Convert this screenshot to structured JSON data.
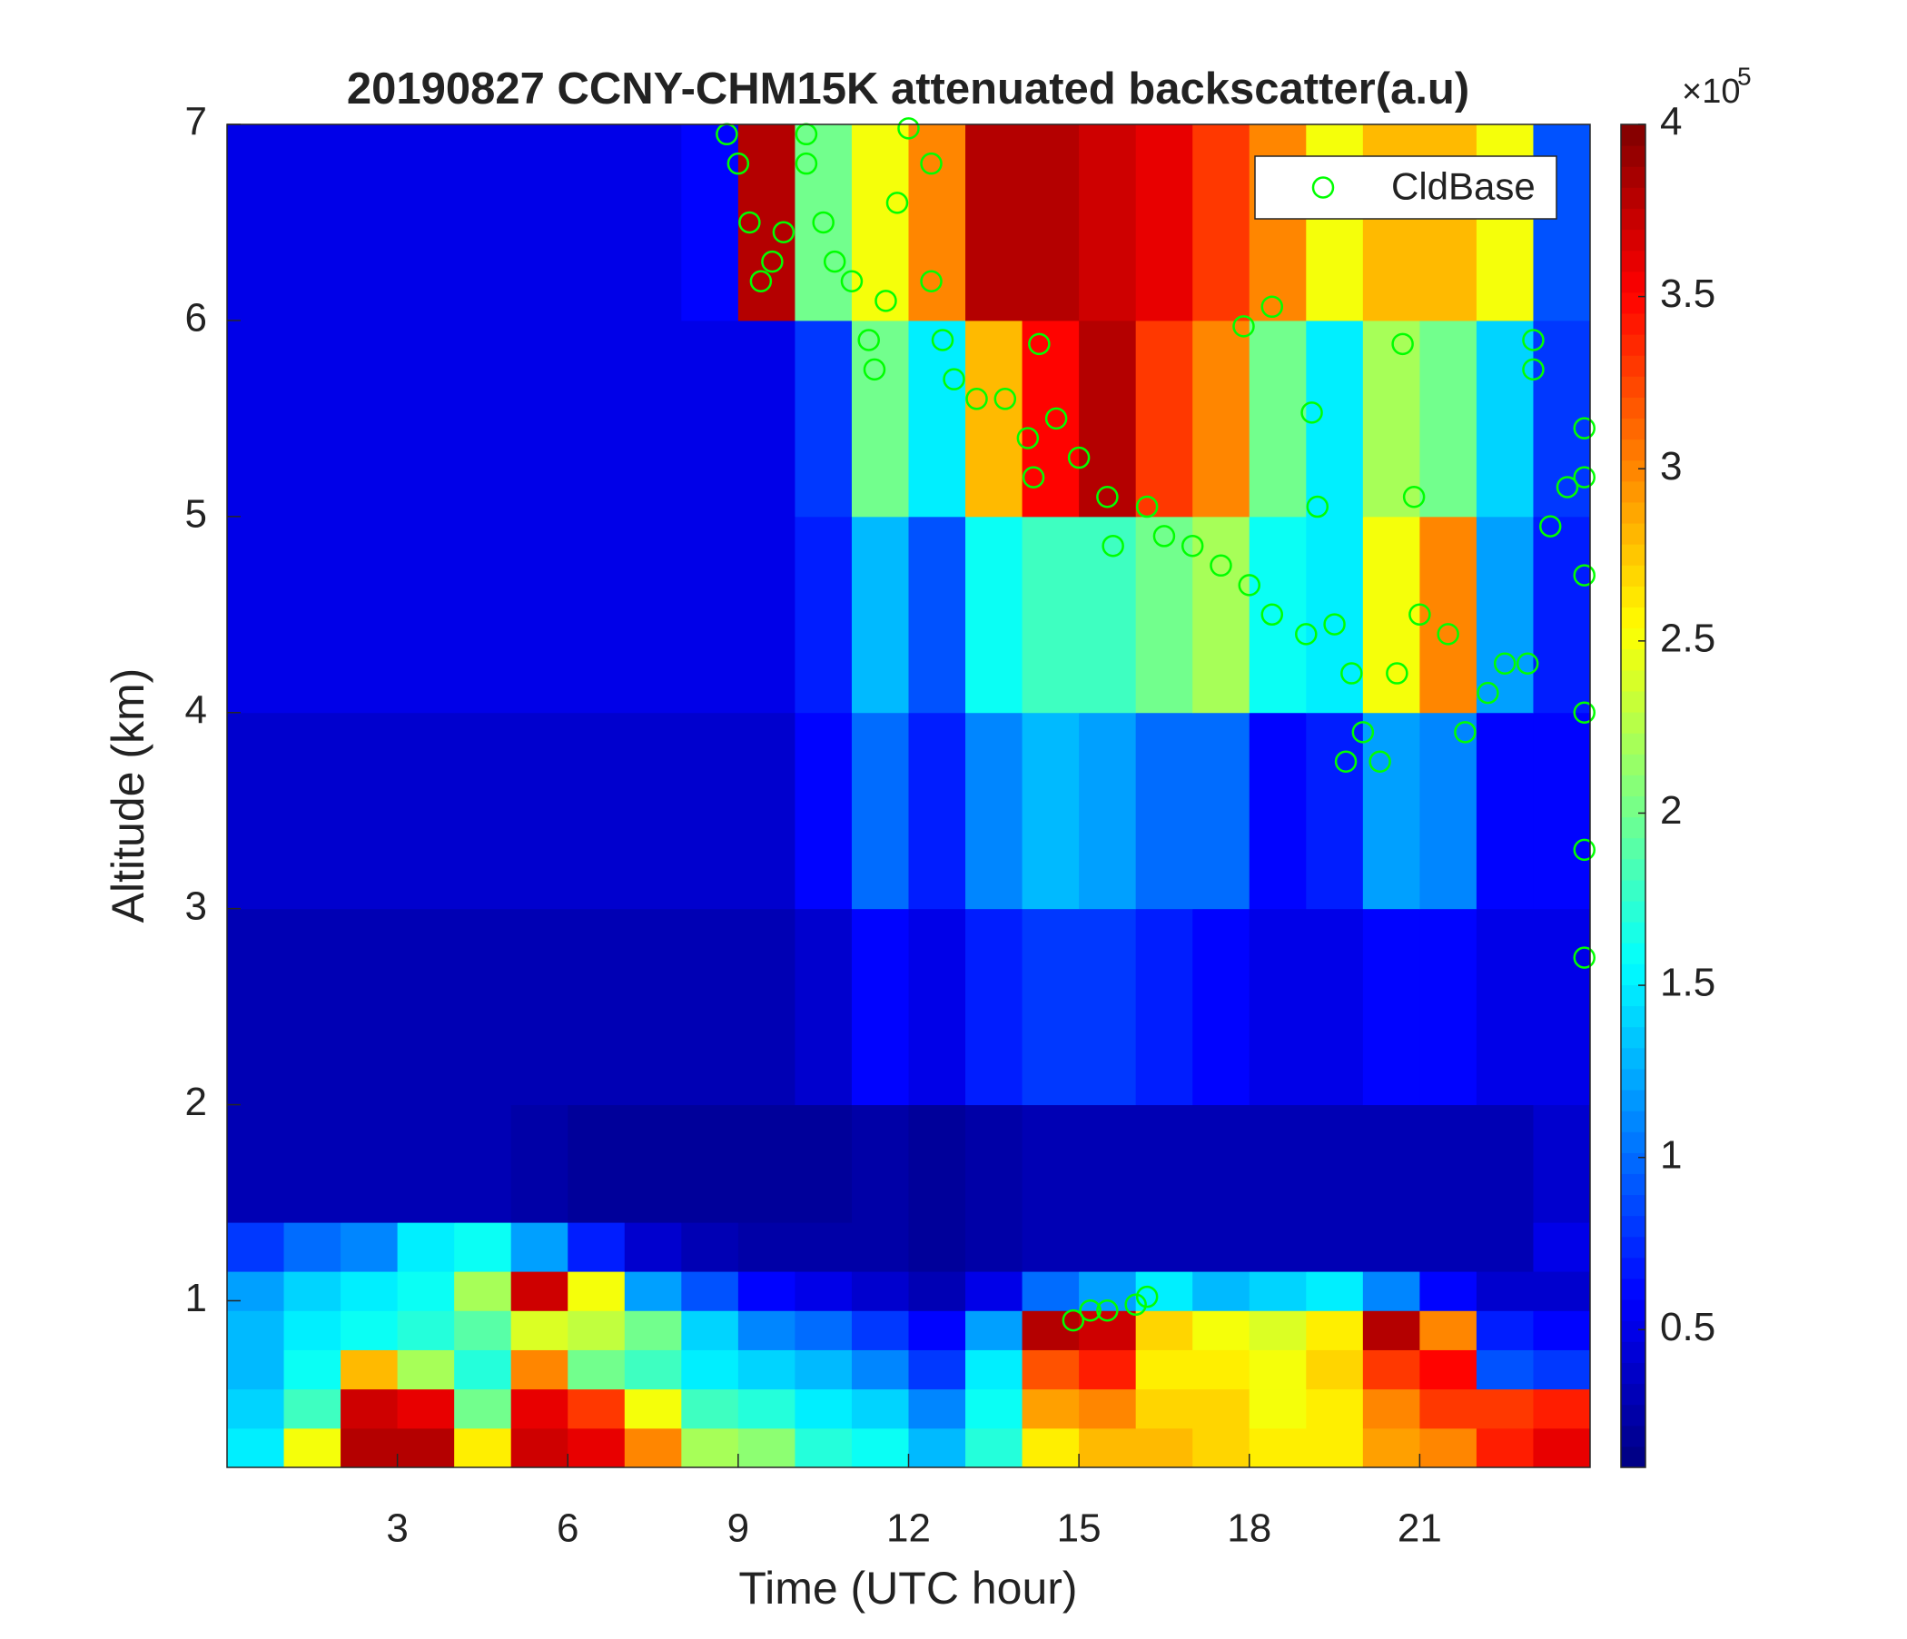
{
  "chart_data": {
    "type": "heatmap",
    "title": "20190827 CCNY-CHM15K attenuated backscatter(a.u)",
    "xlabel": "Time (UTC hour)",
    "ylabel": "Altitude (km)",
    "xlim": [
      0,
      24
    ],
    "ylim": [
      0.15,
      7
    ],
    "xticks": [
      3,
      6,
      9,
      12,
      15,
      18,
      21
    ],
    "yticks": [
      1,
      2,
      3,
      4,
      5,
      6,
      7
    ],
    "colormap": "jet",
    "clim": [
      10000,
      400000
    ],
    "cticks": [
      {
        "value": 50000,
        "label": "0.5"
      },
      {
        "value": 100000,
        "label": "1"
      },
      {
        "value": 150000,
        "label": "1.5"
      },
      {
        "value": 200000,
        "label": "2"
      },
      {
        "value": 250000,
        "label": "2.5"
      },
      {
        "value": 300000,
        "label": "3"
      },
      {
        "value": 350000,
        "label": "3.5"
      },
      {
        "value": 400000,
        "label": "4"
      }
    ],
    "colorbar_exponent": {
      "base": "×10",
      "power": "5"
    },
    "x_edges": [
      0,
      1,
      2,
      3,
      4,
      5,
      6,
      7,
      8,
      9,
      10,
      11,
      12,
      13,
      14,
      15,
      16,
      17,
      18,
      19,
      20,
      21,
      22,
      23,
      24
    ],
    "y_edges": [
      0.15,
      0.35,
      0.55,
      0.75,
      0.95,
      1.15,
      1.4,
      2,
      3,
      4,
      5,
      6,
      7
    ],
    "z": [
      [
        150000,
        250000,
        380000,
        380000,
        260000,
        370000,
        360000,
        300000,
        220000,
        210000,
        170000,
        160000,
        130000,
        170000,
        260000,
        280000,
        280000,
        270000,
        260000,
        260000,
        290000,
        300000,
        340000,
        360000
      ],
      [
        140000,
        180000,
        370000,
        360000,
        200000,
        360000,
        330000,
        250000,
        180000,
        170000,
        150000,
        140000,
        110000,
        160000,
        290000,
        300000,
        270000,
        270000,
        250000,
        260000,
        300000,
        330000,
        330000,
        340000
      ],
      [
        130000,
        160000,
        280000,
        220000,
        170000,
        300000,
        200000,
        180000,
        150000,
        140000,
        130000,
        110000,
        80000,
        150000,
        320000,
        340000,
        260000,
        260000,
        250000,
        270000,
        330000,
        350000,
        90000,
        80000
      ],
      [
        130000,
        150000,
        160000,
        170000,
        190000,
        240000,
        230000,
        200000,
        140000,
        110000,
        100000,
        80000,
        60000,
        120000,
        380000,
        370000,
        270000,
        250000,
        240000,
        260000,
        380000,
        300000,
        70000,
        60000
      ],
      [
        120000,
        140000,
        150000,
        160000,
        220000,
        370000,
        250000,
        120000,
        90000,
        60000,
        50000,
        40000,
        30000,
        50000,
        100000,
        120000,
        150000,
        130000,
        140000,
        150000,
        110000,
        60000,
        40000,
        40000
      ],
      [
        80000,
        100000,
        110000,
        150000,
        160000,
        120000,
        70000,
        40000,
        30000,
        25000,
        25000,
        25000,
        20000,
        25000,
        30000,
        30000,
        30000,
        30000,
        30000,
        30000,
        30000,
        30000,
        30000,
        50000
      ],
      [
        30000,
        30000,
        30000,
        30000,
        30000,
        25000,
        20000,
        20000,
        20000,
        20000,
        20000,
        25000,
        20000,
        25000,
        30000,
        30000,
        30000,
        30000,
        30000,
        30000,
        30000,
        30000,
        30000,
        40000
      ],
      [
        30000,
        30000,
        30000,
        30000,
        30000,
        30000,
        30000,
        30000,
        30000,
        30000,
        40000,
        60000,
        50000,
        70000,
        80000,
        80000,
        70000,
        60000,
        50000,
        50000,
        60000,
        60000,
        50000,
        50000
      ],
      [
        40000,
        40000,
        40000,
        40000,
        40000,
        40000,
        40000,
        40000,
        40000,
        40000,
        60000,
        100000,
        70000,
        110000,
        130000,
        120000,
        100000,
        100000,
        60000,
        70000,
        120000,
        110000,
        60000,
        60000
      ],
      [
        50000,
        50000,
        50000,
        50000,
        50000,
        50000,
        50000,
        50000,
        50000,
        50000,
        70000,
        130000,
        90000,
        160000,
        180000,
        180000,
        200000,
        220000,
        160000,
        150000,
        250000,
        300000,
        120000,
        70000
      ],
      [
        50000,
        50000,
        50000,
        50000,
        50000,
        50000,
        50000,
        50000,
        50000,
        50000,
        80000,
        200000,
        150000,
        280000,
        350000,
        380000,
        330000,
        300000,
        200000,
        150000,
        220000,
        200000,
        140000,
        80000
      ],
      [
        50000,
        50000,
        50000,
        50000,
        50000,
        50000,
        50000,
        50000,
        60000,
        380000,
        200000,
        250000,
        300000,
        380000,
        380000,
        370000,
        360000,
        330000,
        300000,
        250000,
        280000,
        280000,
        250000,
        90000
      ]
    ],
    "legend": "upper right",
    "series": [
      {
        "name": "CldBase",
        "type": "scatter",
        "color": "#00ff00",
        "x": [
          8.8,
          9.0,
          9.2,
          9.4,
          9.6,
          9.8,
          10.2,
          10.2,
          10.5,
          10.7,
          11,
          11.3,
          11.4,
          11.6,
          11.8,
          12.0,
          12.4,
          12.4,
          12.6,
          12.8,
          13.2,
          13.7,
          14.1,
          14.2,
          14.6,
          15.0,
          15.5,
          15.6,
          16.2,
          16.5,
          17,
          17.5,
          18,
          18.4,
          19,
          19.5,
          19.8,
          20,
          20.3,
          20.6,
          21,
          21.5,
          21.8,
          22.2,
          22.5,
          22.9,
          23,
          23.3,
          23.6,
          23.9,
          23.9,
          23.9,
          23.9,
          23.9,
          23.9,
          14.3,
          17.9,
          18.4,
          19.1,
          19.2,
          20.7,
          20.9,
          19.7,
          23,
          14.9,
          15.2,
          15.5,
          16.0,
          16.2
        ],
        "y": [
          6.95,
          6.8,
          6.5,
          6.2,
          6.3,
          6.45,
          6.95,
          6.8,
          6.5,
          6.3,
          6.2,
          5.9,
          5.75,
          6.1,
          6.6,
          6.98,
          6.8,
          6.2,
          5.9,
          5.7,
          5.6,
          5.6,
          5.4,
          5.2,
          5.5,
          5.3,
          5.1,
          4.85,
          5.05,
          4.9,
          4.85,
          4.75,
          4.65,
          4.5,
          4.4,
          4.45,
          4.2,
          3.9,
          3.75,
          4.2,
          4.5,
          4.4,
          3.9,
          4.1,
          4.25,
          4.25,
          5.75,
          4.95,
          5.15,
          5.2,
          4.7,
          4.0,
          3.3,
          2.75,
          5.45,
          5.88,
          5.97,
          6.07,
          5.53,
          5.05,
          5.88,
          5.1,
          3.75,
          5.9,
          0.9,
          0.95,
          0.95,
          0.98,
          1.02
        ]
      }
    ]
  }
}
